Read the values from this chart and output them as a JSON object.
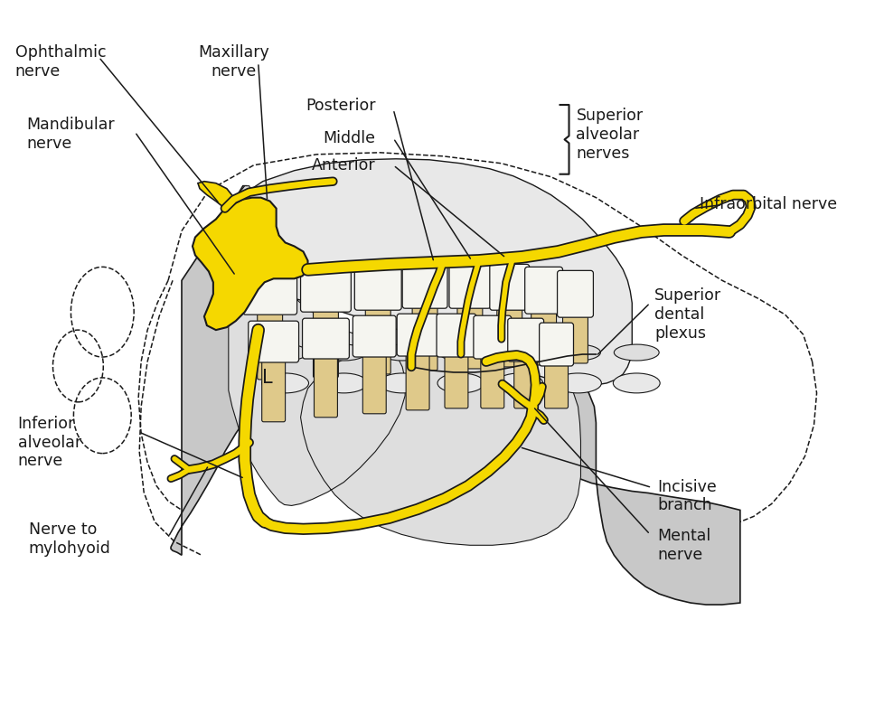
{
  "bg_color": "#ffffff",
  "yellow": "#F5D800",
  "lc": "#1a1a1a",
  "gray_mandible": "#C8C8C8",
  "gray_inner": "#DEDEDE",
  "gray_maxilla": "#E0E0E0",
  "beige": "#DFC98A",
  "white_tooth": "#F5F5F0",
  "fs": 12.5,
  "labels": {
    "ophthalmic_nerve": "Ophthalmic\nnerve",
    "maxillary_nerve": "Maxillary\nnerve",
    "mandibular_nerve": "Mandibular\nnerve",
    "posterior": "Posterior",
    "middle": "Middle",
    "anterior": "Anterior",
    "superior_alveolar": "Superior\nalveolar\nnerves",
    "infraorbital": "Infraorbital nerve",
    "superior_dental": "Superior\ndental\nplexus",
    "inferior_alveolar": "Inferior\nalveolar\nnerve",
    "nerve_to_mylo": "Nerve to\nmylohyoid",
    "incisive": "Incisive\nbranch",
    "mental": "Mental\nnerve",
    "L": "L"
  }
}
